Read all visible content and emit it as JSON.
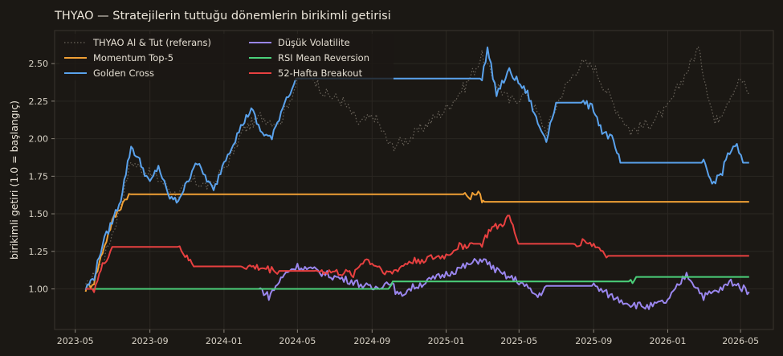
{
  "chart_data": {
    "type": "line",
    "title": "THYAO — Stratejilerin tuttuğu dönemlerin birikimli getirisi",
    "xlabel": "",
    "ylabel": "birikimli getiri (1.0 = başlangıç)",
    "ylim": [
      0.73,
      2.72
    ],
    "grid": true,
    "legend_position": "top-left",
    "x_ticks": [
      "2023-05",
      "2023-09",
      "2024-01",
      "2024-05",
      "2024-09",
      "2025-01",
      "2025-05",
      "2025-09",
      "2026-01",
      "2026-05"
    ],
    "y_ticks": [
      "1.00",
      "1.25",
      "1.50",
      "1.75",
      "2.00",
      "2.25",
      "2.50"
    ],
    "series": [
      {
        "name": "THYAO Al & Tut (referans)",
        "color": "#6b655c",
        "style": "dotted",
        "points": [
          [
            "2023-05-18",
            1.0
          ],
          [
            "2023-06-15",
            1.18
          ],
          [
            "2023-07-10",
            1.48
          ],
          [
            "2023-08-01",
            1.85
          ],
          [
            "2023-08-25",
            1.78
          ],
          [
            "2023-09-20",
            1.72
          ],
          [
            "2023-10-15",
            1.62
          ],
          [
            "2023-11-10",
            1.72
          ],
          [
            "2023-12-10",
            1.68
          ],
          [
            "2024-01-05",
            1.82
          ],
          [
            "2024-02-01",
            2.05
          ],
          [
            "2024-03-01",
            2.15
          ],
          [
            "2024-04-01",
            2.1
          ],
          [
            "2024-05-01",
            2.38
          ],
          [
            "2024-05-20",
            2.45
          ],
          [
            "2024-06-15",
            2.3
          ],
          [
            "2024-07-15",
            2.25
          ],
          [
            "2024-08-10",
            2.1
          ],
          [
            "2024-09-05",
            2.15
          ],
          [
            "2024-10-01",
            1.95
          ],
          [
            "2024-11-01",
            2.0
          ],
          [
            "2024-12-01",
            2.1
          ],
          [
            "2025-01-01",
            2.2
          ],
          [
            "2025-02-01",
            2.35
          ],
          [
            "2025-03-01",
            2.55
          ],
          [
            "2025-03-20",
            2.4
          ],
          [
            "2025-04-15",
            2.25
          ],
          [
            "2025-05-15",
            2.3
          ],
          [
            "2025-06-15",
            2.05
          ],
          [
            "2025-07-10",
            2.3
          ],
          [
            "2025-08-10",
            2.5
          ],
          [
            "2025-09-01",
            2.48
          ],
          [
            "2025-10-01",
            2.25
          ],
          [
            "2025-11-01",
            2.05
          ],
          [
            "2025-12-01",
            2.1
          ],
          [
            "2026-01-01",
            2.2
          ],
          [
            "2026-02-01",
            2.45
          ],
          [
            "2026-02-20",
            2.6
          ],
          [
            "2026-03-20",
            2.1
          ],
          [
            "2026-04-15",
            2.3
          ],
          [
            "2026-05-01",
            2.4
          ],
          [
            "2026-05-15",
            2.3
          ]
        ]
      },
      {
        "name": "Momentum Top-5",
        "color": "#f0a035",
        "style": "solid",
        "points": [
          [
            "2023-05-18",
            1.0
          ],
          [
            "2023-06-01",
            1.05
          ],
          [
            "2023-06-15",
            1.25
          ],
          [
            "2023-07-01",
            1.45
          ],
          [
            "2023-07-15",
            1.55
          ],
          [
            "2023-07-25",
            1.62
          ],
          [
            "2023-08-01",
            1.63
          ],
          [
            "2024-01-01",
            1.63
          ],
          [
            "2024-06-01",
            1.63
          ],
          [
            "2024-12-01",
            1.63
          ],
          [
            "2025-02-01",
            1.63
          ],
          [
            "2025-02-10",
            1.6
          ],
          [
            "2025-02-20",
            1.65
          ],
          [
            "2025-03-01",
            1.6
          ],
          [
            "2025-03-05",
            1.58
          ],
          [
            "2025-06-01",
            1.58
          ],
          [
            "2026-01-01",
            1.58
          ],
          [
            "2026-05-15",
            1.58
          ]
        ]
      },
      {
        "name": "Golden Cross",
        "color": "#5aa2ec",
        "style": "solid",
        "points": [
          [
            "2023-05-18",
            1.0
          ],
          [
            "2023-06-01",
            1.08
          ],
          [
            "2023-06-15",
            1.3
          ],
          [
            "2023-07-01",
            1.45
          ],
          [
            "2023-07-15",
            1.6
          ],
          [
            "2023-08-01",
            1.95
          ],
          [
            "2023-08-15",
            1.85
          ],
          [
            "2023-09-01",
            1.7
          ],
          [
            "2023-09-15",
            1.82
          ],
          [
            "2023-10-01",
            1.62
          ],
          [
            "2023-10-15",
            1.58
          ],
          [
            "2023-11-01",
            1.7
          ],
          [
            "2023-11-15",
            1.85
          ],
          [
            "2023-12-01",
            1.75
          ],
          [
            "2023-12-15",
            1.65
          ],
          [
            "2024-01-01",
            1.85
          ],
          [
            "2024-02-01",
            2.1
          ],
          [
            "2024-02-15",
            2.2
          ],
          [
            "2024-03-01",
            2.05
          ],
          [
            "2024-03-20",
            2.0
          ],
          [
            "2024-04-10",
            2.25
          ],
          [
            "2024-05-01",
            2.4
          ],
          [
            "2024-06-01",
            2.4
          ],
          [
            "2024-09-01",
            2.4
          ],
          [
            "2025-01-01",
            2.4
          ],
          [
            "2025-03-01",
            2.4
          ],
          [
            "2025-03-10",
            2.6
          ],
          [
            "2025-03-25",
            2.3
          ],
          [
            "2025-04-15",
            2.45
          ],
          [
            "2025-05-15",
            2.3
          ],
          [
            "2025-06-01",
            2.1
          ],
          [
            "2025-06-15",
            2.0
          ],
          [
            "2025-07-01",
            2.24
          ],
          [
            "2025-08-15",
            2.24
          ],
          [
            "2025-09-01",
            2.2
          ],
          [
            "2025-09-15",
            2.05
          ],
          [
            "2025-10-01",
            2.0
          ],
          [
            "2025-10-15",
            1.84
          ],
          [
            "2025-11-01",
            1.84
          ],
          [
            "2026-01-01",
            1.84
          ],
          [
            "2026-03-01",
            1.84
          ],
          [
            "2026-03-15",
            1.7
          ],
          [
            "2026-04-01",
            1.78
          ],
          [
            "2026-04-10",
            1.9
          ],
          [
            "2026-04-25",
            1.95
          ],
          [
            "2026-05-05",
            1.84
          ],
          [
            "2026-05-15",
            1.84
          ]
        ]
      },
      {
        "name": "Düşük Volatilite",
        "color": "#9a86ee",
        "style": "solid",
        "points": [
          [
            "2023-05-18",
            1.0
          ],
          [
            "2024-01-01",
            1.0
          ],
          [
            "2024-03-01",
            1.0
          ],
          [
            "2024-03-15",
            0.95
          ],
          [
            "2024-04-01",
            1.05
          ],
          [
            "2024-04-15",
            1.12
          ],
          [
            "2024-05-01",
            1.15
          ],
          [
            "2024-06-01",
            1.12
          ],
          [
            "2024-07-01",
            1.08
          ],
          [
            "2024-08-01",
            1.05
          ],
          [
            "2024-09-01",
            1.0
          ],
          [
            "2024-10-01",
            1.05
          ],
          [
            "2024-10-15",
            0.95
          ],
          [
            "2024-11-01",
            1.0
          ],
          [
            "2024-12-01",
            1.05
          ],
          [
            "2025-01-01",
            1.1
          ],
          [
            "2025-02-01",
            1.15
          ],
          [
            "2025-03-01",
            1.2
          ],
          [
            "2025-04-01",
            1.1
          ],
          [
            "2025-05-01",
            1.05
          ],
          [
            "2025-06-01",
            0.95
          ],
          [
            "2025-06-15",
            1.02
          ],
          [
            "2025-09-01",
            1.02
          ],
          [
            "2025-10-01",
            0.95
          ],
          [
            "2025-11-01",
            0.9
          ],
          [
            "2025-12-01",
            0.88
          ],
          [
            "2026-01-01",
            0.92
          ],
          [
            "2026-02-01",
            1.1
          ],
          [
            "2026-03-01",
            0.95
          ],
          [
            "2026-04-01",
            1.0
          ],
          [
            "2026-04-15",
            1.05
          ],
          [
            "2026-05-15",
            0.98
          ]
        ]
      },
      {
        "name": "RSI Mean Reversion",
        "color": "#4bd07a",
        "style": "solid",
        "points": [
          [
            "2023-05-18",
            1.0
          ],
          [
            "2024-01-01",
            1.0
          ],
          [
            "2024-10-01",
            1.0
          ],
          [
            "2024-10-05",
            1.05
          ],
          [
            "2025-03-01",
            1.05
          ],
          [
            "2025-06-01",
            1.05
          ],
          [
            "2025-10-01",
            1.05
          ],
          [
            "2025-11-01",
            1.05
          ],
          [
            "2025-11-10",
            1.08
          ],
          [
            "2025-12-01",
            1.08
          ],
          [
            "2026-01-01",
            1.08
          ],
          [
            "2026-05-15",
            1.08
          ]
        ]
      },
      {
        "name": "52-Hafta Breakout",
        "color": "#e84040",
        "style": "solid",
        "points": [
          [
            "2023-05-18",
            1.0
          ],
          [
            "2023-06-01",
            1.0
          ],
          [
            "2023-06-15",
            1.15
          ],
          [
            "2023-07-01",
            1.28
          ],
          [
            "2023-08-01",
            1.28
          ],
          [
            "2023-10-01",
            1.28
          ],
          [
            "2023-10-20",
            1.28
          ],
          [
            "2023-11-01",
            1.2
          ],
          [
            "2023-11-15",
            1.15
          ],
          [
            "2024-01-01",
            1.15
          ],
          [
            "2024-02-01",
            1.15
          ],
          [
            "2024-03-01",
            1.14
          ],
          [
            "2024-04-01",
            1.12
          ],
          [
            "2024-05-01",
            1.12
          ],
          [
            "2024-06-01",
            1.12
          ],
          [
            "2024-08-01",
            1.1
          ],
          [
            "2024-08-20",
            1.2
          ],
          [
            "2024-09-10",
            1.15
          ],
          [
            "2024-10-01",
            1.1
          ],
          [
            "2024-11-01",
            1.18
          ],
          [
            "2024-12-01",
            1.2
          ],
          [
            "2025-01-01",
            1.22
          ],
          [
            "2025-01-20",
            1.28
          ],
          [
            "2025-02-15",
            1.3
          ],
          [
            "2025-03-01",
            1.3
          ],
          [
            "2025-03-15",
            1.4
          ],
          [
            "2025-04-01",
            1.42
          ],
          [
            "2025-04-15",
            1.48
          ],
          [
            "2025-04-30",
            1.3
          ],
          [
            "2025-05-15",
            1.3
          ],
          [
            "2025-06-01",
            1.3
          ],
          [
            "2025-08-01",
            1.3
          ],
          [
            "2025-08-20",
            1.32
          ],
          [
            "2025-09-10",
            1.27
          ],
          [
            "2025-09-25",
            1.22
          ],
          [
            "2025-10-15",
            1.22
          ],
          [
            "2026-01-01",
            1.22
          ],
          [
            "2026-05-15",
            1.22
          ]
        ]
      }
    ]
  }
}
